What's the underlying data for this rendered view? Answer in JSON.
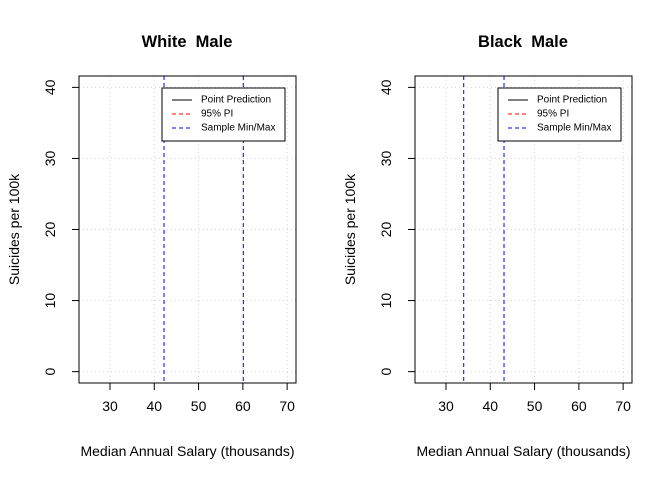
{
  "chart_data": [
    {
      "type": "line",
      "title": "White  Male",
      "xlabel": "Median Annual Salary (thousands)",
      "ylabel": "Suicides per 100k",
      "xlim": [
        23,
        72
      ],
      "ylim": [
        -1.6,
        41.6
      ],
      "x_ticks": [
        30,
        40,
        50,
        60,
        70
      ],
      "y_ticks": [
        0,
        10,
        20,
        30,
        40
      ],
      "grid": true,
      "legend_position": "top-right",
      "legend": [
        {
          "label": "Point Prediction",
          "color": "#000000",
          "dash": "solid"
        },
        {
          "label": "95% PI",
          "color": "#ff0000",
          "dash": "dashed"
        },
        {
          "label": "Sample Min/Max",
          "color": "#0000ff",
          "dash": "dashed"
        }
      ],
      "series": [
        {
          "name": "Sample Min/Max",
          "type": "vline",
          "color": "#0000ff",
          "x": [
            42.2,
            60.1
          ]
        }
      ]
    },
    {
      "type": "line",
      "title": "Black  Male",
      "xlabel": "Median Annual Salary (thousands)",
      "ylabel": "Suicides per 100k",
      "xlim": [
        23,
        72
      ],
      "ylim": [
        -1.6,
        41.6
      ],
      "x_ticks": [
        30,
        40,
        50,
        60,
        70
      ],
      "y_ticks": [
        0,
        10,
        20,
        30,
        40
      ],
      "grid": true,
      "legend_position": "top-right",
      "legend": [
        {
          "label": "Point Prediction",
          "color": "#000000",
          "dash": "solid"
        },
        {
          "label": "95% PI",
          "color": "#ff0000",
          "dash": "dashed"
        },
        {
          "label": "Sample Min/Max",
          "color": "#0000ff",
          "dash": "dashed"
        }
      ],
      "series": [
        {
          "name": "Sample Min/Max",
          "type": "vline",
          "color": "#0000ff",
          "x": [
            34.0,
            43.1
          ]
        }
      ]
    }
  ]
}
